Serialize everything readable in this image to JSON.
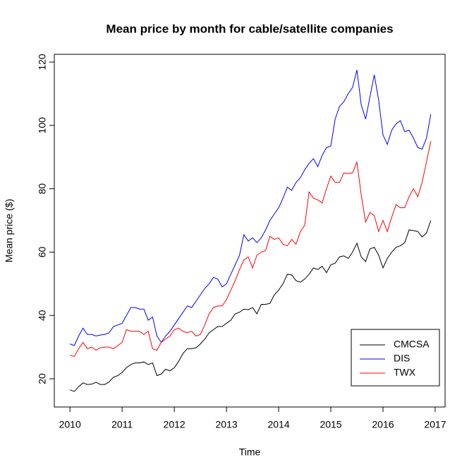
{
  "chart_data": {
    "type": "line",
    "title": "Mean price by month for cable/satellite companies",
    "x_label": "Time",
    "y_label": "Mean price ($)",
    "x": [
      2010,
      2010.083,
      2010.167,
      2010.25,
      2010.333,
      2010.417,
      2010.5,
      2010.583,
      2010.667,
      2010.75,
      2010.833,
      2010.917,
      2011,
      2011.083,
      2011.167,
      2011.25,
      2011.333,
      2011.417,
      2011.5,
      2011.583,
      2011.667,
      2011.75,
      2011.833,
      2011.917,
      2012,
      2012.083,
      2012.167,
      2012.25,
      2012.333,
      2012.417,
      2012.5,
      2012.583,
      2012.667,
      2012.75,
      2012.833,
      2012.917,
      2013,
      2013.083,
      2013.167,
      2013.25,
      2013.333,
      2013.417,
      2013.5,
      2013.583,
      2013.667,
      2013.75,
      2013.833,
      2013.917,
      2014,
      2014.083,
      2014.167,
      2014.25,
      2014.333,
      2014.417,
      2014.5,
      2014.583,
      2014.667,
      2014.75,
      2014.833,
      2014.917,
      2015,
      2015.083,
      2015.167,
      2015.25,
      2015.333,
      2015.417,
      2015.5,
      2015.583,
      2015.667,
      2015.75,
      2015.833,
      2015.917,
      2016,
      2016.083,
      2016.167,
      2016.25,
      2016.333,
      2016.417,
      2016.5,
      2016.583,
      2016.667,
      2016.75,
      2016.833,
      2016.917
    ],
    "series": [
      {
        "name": "CMCSA",
        "color": "#000000",
        "values": [
          16.5,
          16,
          17.5,
          18.7,
          18.2,
          18.3,
          18.9,
          18.2,
          18.2,
          19,
          20.5,
          21,
          22,
          23.5,
          24.5,
          25,
          25,
          25.3,
          24.5,
          25,
          21,
          21.5,
          23,
          22.5,
          23.5,
          25.5,
          28,
          29.5,
          29.5,
          29.8,
          31,
          32.5,
          34.5,
          35.5,
          36.5,
          36.5,
          37.5,
          38.5,
          40.5,
          41,
          42,
          41.8,
          42.5,
          40.5,
          43.5,
          43.5,
          43.8,
          46.5,
          48,
          50,
          53,
          52.8,
          51,
          50.5,
          51.5,
          53,
          55,
          54.5,
          55.5,
          53.5,
          56,
          56.5,
          58.5,
          58.8,
          58,
          60,
          62.8,
          58.5,
          57,
          61,
          61.5,
          59,
          55,
          58,
          60,
          61.5,
          62,
          63,
          67,
          66.8,
          66.5,
          64.8,
          66,
          70
        ]
      },
      {
        "name": "DIS",
        "color": "#0000ff",
        "values": [
          31,
          30.5,
          33.5,
          36,
          34,
          34,
          33.5,
          33.8,
          34,
          34.5,
          36.5,
          37,
          37.5,
          40,
          42.5,
          42.5,
          42,
          42,
          38.5,
          39.5,
          33.5,
          31.5,
          33.5,
          35,
          37,
          39,
          41,
          43,
          42.5,
          44.5,
          46.5,
          48.5,
          50,
          52,
          51.5,
          49,
          50,
          53,
          56,
          59,
          65.5,
          63.5,
          64.5,
          63,
          64.5,
          67,
          70,
          72,
          74,
          77,
          80.5,
          79.5,
          82,
          83.5,
          86,
          88,
          89.5,
          87,
          90.5,
          93,
          93.5,
          102,
          106,
          107.5,
          110,
          112,
          117.5,
          106.5,
          102,
          109,
          116,
          108,
          97,
          94,
          98.5,
          100.5,
          101.5,
          98,
          98.5,
          96,
          93,
          92.5,
          96,
          103.5
        ]
      },
      {
        "name": "TWX",
        "color": "#ff0000",
        "values": [
          27.5,
          27,
          29.5,
          31.5,
          29.5,
          30,
          29,
          29.8,
          30,
          30,
          29.5,
          30.5,
          31.5,
          35.5,
          35,
          35,
          35,
          34,
          35,
          29.5,
          29,
          31.5,
          32.5,
          33.5,
          35.5,
          36,
          35,
          34.5,
          35,
          33.5,
          34,
          37,
          40.5,
          42.5,
          43,
          43,
          45,
          48,
          51,
          54.5,
          57.5,
          58.5,
          55,
          59,
          60,
          60.5,
          65,
          64,
          64.5,
          62.5,
          62,
          64,
          62.5,
          66.5,
          68.5,
          79,
          77,
          76.5,
          75.5,
          80,
          84,
          82,
          82,
          85,
          84.8,
          85,
          88.5,
          78,
          69.5,
          72.5,
          71.5,
          66.5,
          70,
          66.5,
          71,
          75,
          74,
          74,
          77.5,
          80,
          77.5,
          82,
          88.5,
          95
        ]
      }
    ],
    "xlim": [
      2009.7,
      2017.19
    ],
    "xticks": [
      2010,
      2011,
      2012,
      2013,
      2014,
      2015,
      2016,
      2017
    ],
    "ylim": [
      11.09,
      122.45
    ],
    "yticks": [
      20,
      40,
      60,
      80,
      100,
      120
    ],
    "legend_position": "bottomright"
  }
}
